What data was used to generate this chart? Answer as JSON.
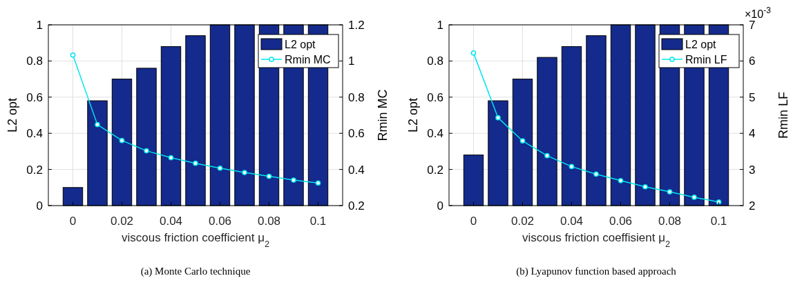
{
  "chart_data": [
    {
      "type": "bar",
      "xlabel": "viscous friction coefficient μ$_{2}$",
      "ylabel": "L2 opt",
      "y2label": "Rmin MC",
      "x": [
        0,
        0.01,
        0.02,
        0.03,
        0.04,
        0.05,
        0.06,
        0.07,
        0.08,
        0.09,
        0.1
      ],
      "series": [
        {
          "name": "L2 opt",
          "color": "#142a8c",
          "values": [
            0.1,
            0.58,
            0.7,
            0.76,
            0.88,
            0.94,
            1,
            1,
            1,
            1,
            1
          ]
        },
        {
          "name": "Rmin MC",
          "type": "line",
          "axis": "y2",
          "color": "#00e5ee",
          "values": [
            1.033,
            0.648,
            0.56,
            0.503,
            0.465,
            0.434,
            0.407,
            0.383,
            0.362,
            0.341,
            0.325
          ]
        }
      ],
      "xlim": [
        -0.01,
        0.11
      ],
      "xticks": [
        0,
        0.02,
        0.04,
        0.06,
        0.08,
        0.1
      ],
      "ylim": [
        0,
        1
      ],
      "yticks": [
        0,
        0.2,
        0.4,
        0.6,
        0.8,
        1
      ],
      "y2lim": [
        0.2,
        1.2
      ],
      "y2ticks": [
        0.2,
        0.4,
        0.6,
        0.8,
        1,
        1.2
      ],
      "grid": true,
      "legend": "top right",
      "marker": "circle",
      "annotations": [
        "(a)  Monte Carlo technique"
      ]
    },
    {
      "type": "bar",
      "xlabel": "viscous friction coeffisient μ$_{2}$",
      "ylabel": "L2 opt",
      "y2label": "Rmin LF",
      "x": [
        0,
        0.01,
        0.02,
        0.03,
        0.04,
        0.05,
        0.06,
        0.07,
        0.08,
        0.09,
        0.1
      ],
      "series": [
        {
          "name": "L2 opt",
          "color": "#142a8c",
          "values": [
            0.28,
            0.58,
            0.7,
            0.82,
            0.88,
            0.94,
            1,
            1,
            1,
            1,
            1
          ]
        },
        {
          "name": "Rmin LF",
          "type": "line",
          "axis": "y2",
          "color": "#00e5ee",
          "values": [
            6.22,
            4.43,
            3.79,
            3.38,
            3.08,
            2.87,
            2.69,
            2.52,
            2.38,
            2.23,
            2.1
          ]
        }
      ],
      "xlim": [
        -0.01,
        0.11
      ],
      "xticks": [
        0,
        0.02,
        0.04,
        0.06,
        0.08,
        0.1
      ],
      "ylim": [
        0,
        1
      ],
      "yticks": [
        0,
        0.2,
        0.4,
        0.6,
        0.8,
        1
      ],
      "y2lim": [
        2,
        7
      ],
      "y2ticks": [
        2,
        3,
        4,
        5,
        6,
        7
      ],
      "grid": true,
      "legend": "top right",
      "marker": "circle",
      "annotations": [
        "×10$^{-3}$",
        "(b)  Lyapunov function based approach"
      ]
    }
  ]
}
